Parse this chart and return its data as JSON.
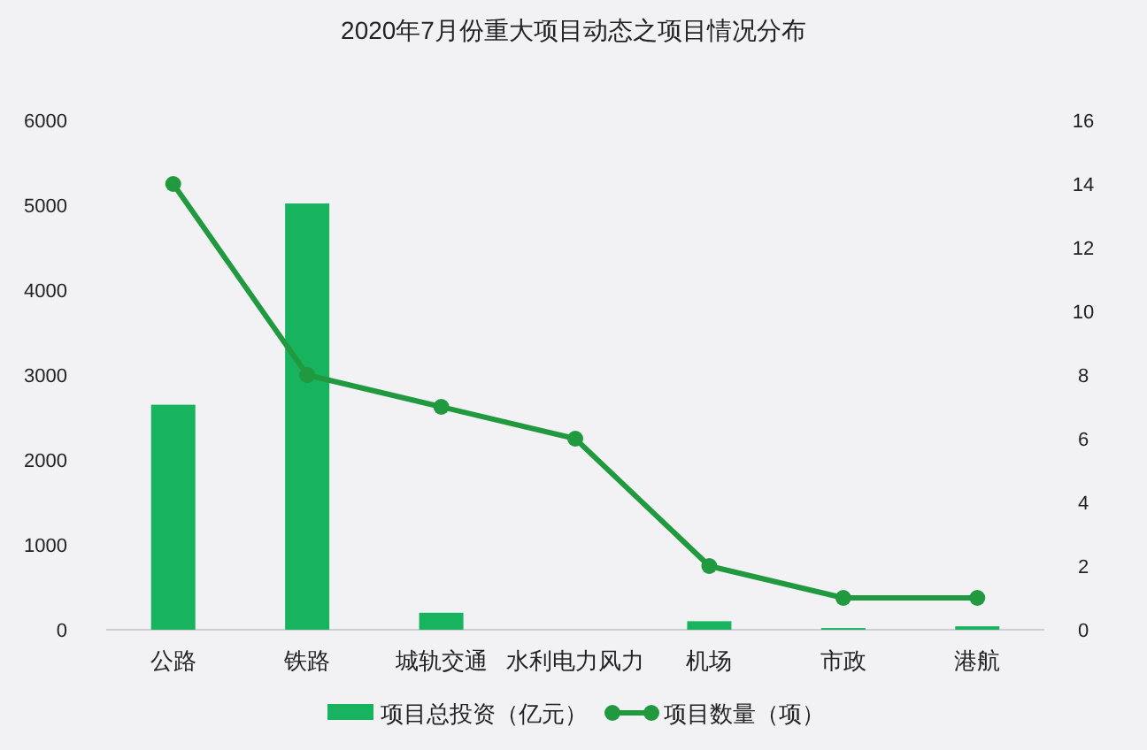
{
  "chart_data": {
    "type": "bar",
    "title": "2020年7月份重大项目动态之项目情况分布",
    "categories": [
      "公路",
      "铁路",
      "城轨交通",
      "水利电力风力",
      "机场",
      "市政",
      "港航"
    ],
    "series": [
      {
        "name": "项目总投资（亿元）",
        "color": "#17b35e",
        "values": [
          2650,
          5020,
          200,
          0,
          100,
          20,
          40
        ]
      },
      {
        "name": "项目数量（项）",
        "type": "line",
        "axis": "y2",
        "color": "#20993f",
        "marker": "circle",
        "values": [
          14,
          8,
          7,
          6,
          2,
          1,
          1
        ]
      }
    ],
    "ylim": [
      0,
      6000
    ],
    "yticks": [
      0,
      1000,
      2000,
      3000,
      4000,
      5000,
      6000
    ],
    "y2lim": [
      0,
      16
    ],
    "y2ticks": [
      0,
      2,
      4,
      6,
      8,
      10,
      12,
      14,
      16
    ],
    "grid": false,
    "legend": "bottom"
  }
}
